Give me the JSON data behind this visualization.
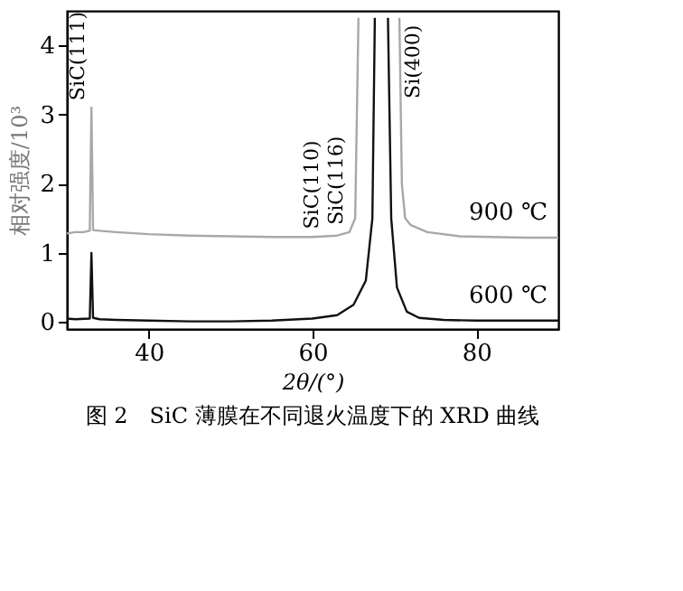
{
  "chart_data": {
    "type": "line",
    "title": "图 2　SiC 薄膜在不同退火温度下的 XRD 曲线",
    "xlabel": "2θ/(°)",
    "ylabel": "相对强度/10³",
    "xlim": [
      30,
      90
    ],
    "ylim": [
      -0.1,
      4.5
    ],
    "xticks": [
      40,
      60,
      80
    ],
    "yticks": [
      0,
      1,
      2,
      3,
      4
    ],
    "grid": false,
    "marker": "none",
    "line_style": "solid",
    "series": [
      {
        "name": "900 ℃",
        "color": "#a8a8a8",
        "x": [
          30,
          31,
          32,
          32.8,
          33,
          33.2,
          34,
          36,
          40,
          45,
          50,
          55,
          60,
          61.5,
          63,
          64.5,
          65.2,
          65.6,
          68,
          70.6,
          70.9,
          71.3,
          72,
          74,
          78,
          82,
          86,
          90
        ],
        "values": [
          1.28,
          1.3,
          1.3,
          1.32,
          3.1,
          1.33,
          1.32,
          1.3,
          1.27,
          1.25,
          1.24,
          1.23,
          1.23,
          1.24,
          1.25,
          1.3,
          1.5,
          4.4,
          null,
          4.4,
          2.0,
          1.5,
          1.4,
          1.3,
          1.24,
          1.23,
          1.22,
          1.22
        ]
      },
      {
        "name": "600 ℃",
        "color": "#111111",
        "x": [
          30,
          31,
          32.8,
          33,
          33.2,
          34,
          36,
          40,
          45,
          50,
          55,
          60,
          63,
          65,
          66.5,
          67.3,
          67.6,
          68.4,
          69.2,
          69.6,
          70.3,
          71.5,
          73,
          76,
          80,
          85,
          90
        ],
        "values": [
          0.05,
          0.04,
          0.05,
          1.0,
          0.06,
          0.04,
          0.03,
          0.02,
          0.01,
          0.01,
          0.02,
          0.05,
          0.1,
          0.25,
          0.6,
          1.5,
          4.4,
          null,
          4.4,
          1.5,
          0.5,
          0.15,
          0.06,
          0.03,
          0.02,
          0.02,
          0.02
        ]
      }
    ],
    "annotations": [
      {
        "text": "SiC(111)",
        "x": 33,
        "y": 3.1
      },
      {
        "text": "SiC(110)",
        "x": 61.5,
        "y": 1.24
      },
      {
        "text": "SiC(116)",
        "x": 64.5,
        "y": 1.3
      },
      {
        "text": "Si(400)",
        "x": 70.6,
        "y": 4.4
      }
    ]
  }
}
